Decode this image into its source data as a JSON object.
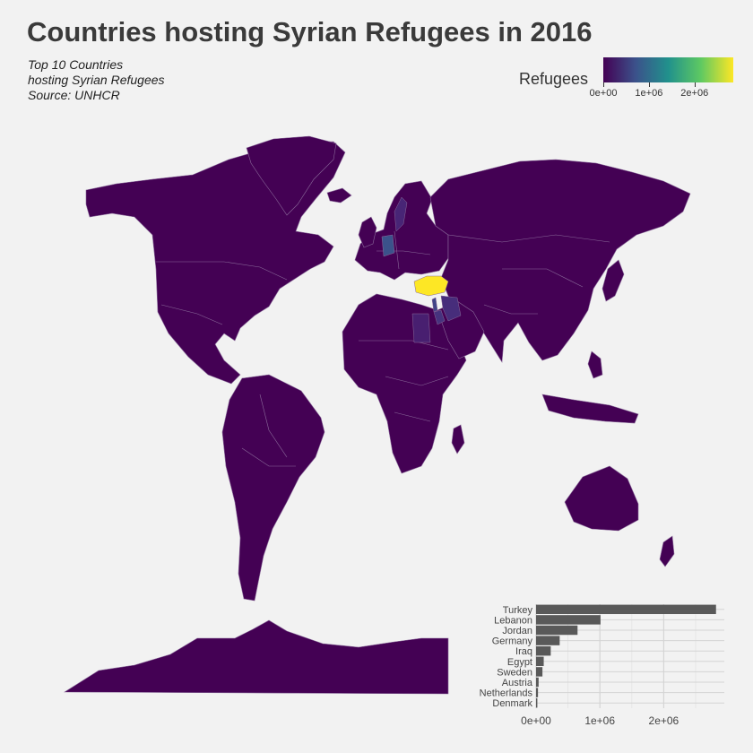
{
  "title": "Countries hosting Syrian Refugees in 2016",
  "subtitle": [
    "Top 10 Countries",
    "hosting Syrian Refugees",
    "Source: UNHCR"
  ],
  "legend": {
    "title": "Refugees",
    "ticks": [
      "0e+00",
      "1e+06",
      "2e+06"
    ],
    "tick_values": [
      0,
      1000000,
      2000000
    ],
    "range": [
      0,
      2850000
    ],
    "colors": [
      "#440154",
      "#3b528b",
      "#21918c",
      "#5ec962",
      "#fde725"
    ]
  },
  "map": {
    "land_color": "#440154",
    "border_color": "#8a6a9a",
    "highlights": [
      {
        "name": "Turkey",
        "color": "#fde725"
      },
      {
        "name": "Lebanon",
        "color": "#414487"
      },
      {
        "name": "Jordan",
        "color": "#46337e"
      },
      {
        "name": "Germany",
        "color": "#3b528b"
      },
      {
        "name": "Iraq",
        "color": "#472d7b"
      },
      {
        "name": "Egypt",
        "color": "#481f70"
      },
      {
        "name": "Sweden",
        "color": "#482576"
      }
    ]
  },
  "chart_data": {
    "type": "bar",
    "orientation": "horizontal",
    "categories": [
      "Turkey",
      "Lebanon",
      "Jordan",
      "Germany",
      "Iraq",
      "Egypt",
      "Sweden",
      "Austria",
      "Netherlands",
      "Denmark"
    ],
    "values": [
      2820000,
      1010000,
      650000,
      370000,
      230000,
      120000,
      100000,
      40000,
      30000,
      20000
    ],
    "xticks": [
      "0e+00",
      "1e+06",
      "2e+06"
    ],
    "xtick_values": [
      0,
      1000000,
      2000000
    ],
    "xlim": [
      0,
      2950000
    ],
    "bar_color": "#595959",
    "grid": true
  }
}
